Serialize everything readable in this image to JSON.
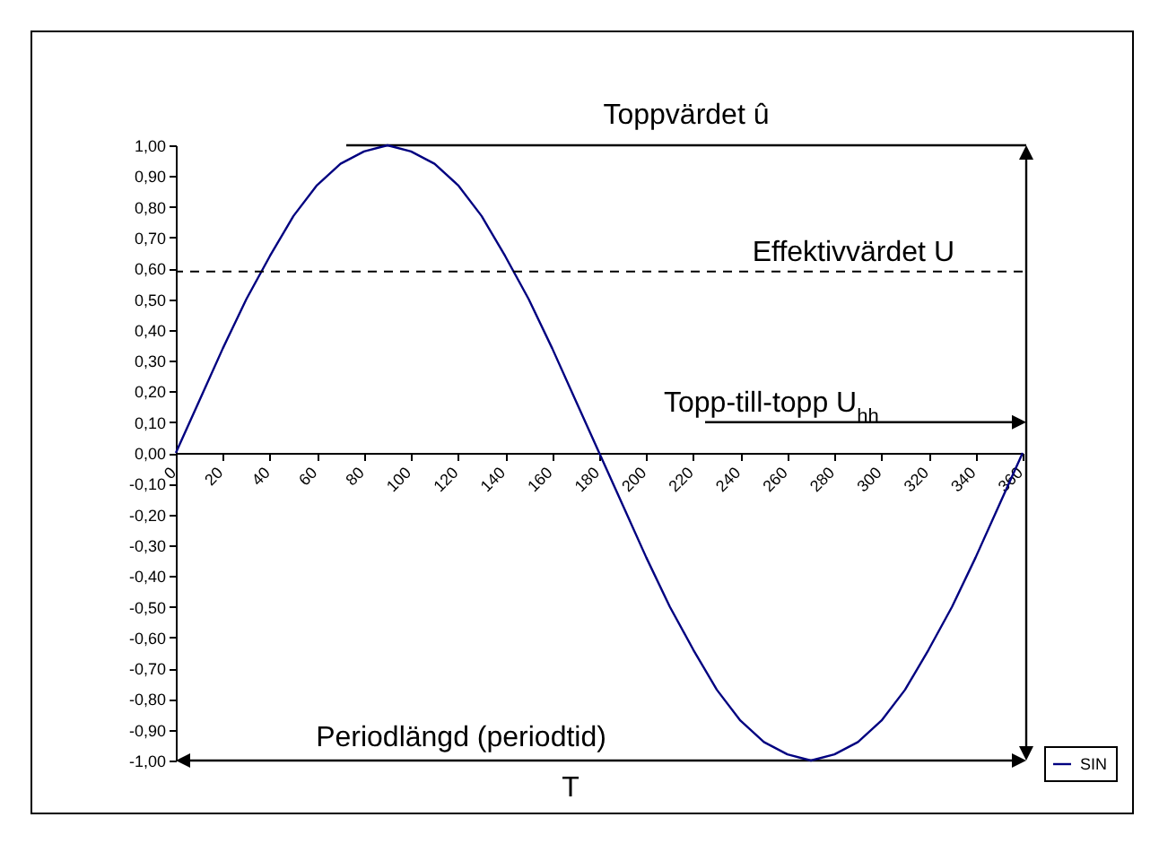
{
  "chart_data": {
    "type": "line",
    "x": [
      0,
      10,
      20,
      30,
      40,
      50,
      60,
      70,
      80,
      90,
      100,
      110,
      120,
      130,
      140,
      150,
      160,
      170,
      180,
      190,
      200,
      210,
      220,
      230,
      240,
      250,
      260,
      270,
      280,
      290,
      300,
      310,
      320,
      330,
      340,
      350,
      360
    ],
    "series": [
      {
        "name": "SIN",
        "color": "#000080",
        "values": [
          0,
          0.17,
          0.34,
          0.5,
          0.64,
          0.77,
          0.87,
          0.94,
          0.98,
          1,
          0.98,
          0.94,
          0.87,
          0.77,
          0.64,
          0.5,
          0.34,
          0.17,
          0,
          -0.17,
          -0.34,
          -0.5,
          -0.64,
          -0.77,
          -0.87,
          -0.94,
          -0.98,
          -1,
          -0.98,
          -0.94,
          -0.87,
          -0.77,
          -0.64,
          -0.5,
          -0.34,
          -0.17,
          0
        ]
      }
    ],
    "xlim": [
      0,
      360
    ],
    "xticks": [
      0,
      20,
      40,
      60,
      80,
      100,
      120,
      140,
      160,
      180,
      200,
      220,
      240,
      260,
      280,
      300,
      320,
      340,
      360
    ],
    "ylim": [
      -1,
      1
    ],
    "yticks": [
      {
        "value": -1,
        "label": "-1,00"
      },
      {
        "value": -0.9,
        "label": "-0,90"
      },
      {
        "value": -0.8,
        "label": "-0,80"
      },
      {
        "value": -0.7,
        "label": "-0,70"
      },
      {
        "value": -0.6,
        "label": "-0,60"
      },
      {
        "value": -0.5,
        "label": "-0,50"
      },
      {
        "value": -0.4,
        "label": "-0,40"
      },
      {
        "value": -0.3,
        "label": "-0,30"
      },
      {
        "value": -0.2,
        "label": "-0,20"
      },
      {
        "value": -0.1,
        "label": "-0,10"
      },
      {
        "value": 0,
        "label": "0,00"
      },
      {
        "value": 0.1,
        "label": "0,10"
      },
      {
        "value": 0.2,
        "label": "0,20"
      },
      {
        "value": 0.3,
        "label": "0,30"
      },
      {
        "value": 0.4,
        "label": "0,40"
      },
      {
        "value": 0.5,
        "label": "0,50"
      },
      {
        "value": 0.6,
        "label": "0,60"
      },
      {
        "value": 0.7,
        "label": "0,70"
      },
      {
        "value": 0.8,
        "label": "0,80"
      },
      {
        "value": 0.9,
        "label": "0,90"
      },
      {
        "value": 1,
        "label": "1,00"
      }
    ],
    "ref_lines": [
      {
        "axis": "y",
        "value": 0.59,
        "label": "Effektivvärdet U",
        "color": "#000000",
        "line_style": "dashed"
      }
    ],
    "annotations": [
      "Toppvärdet û",
      "Topp-till-topp  U$_{hh}$",
      "Periodlängd (periodtid)",
      "T"
    ],
    "legend": "bottom right",
    "grid": false,
    "marker": "none",
    "line_style": "solid"
  }
}
